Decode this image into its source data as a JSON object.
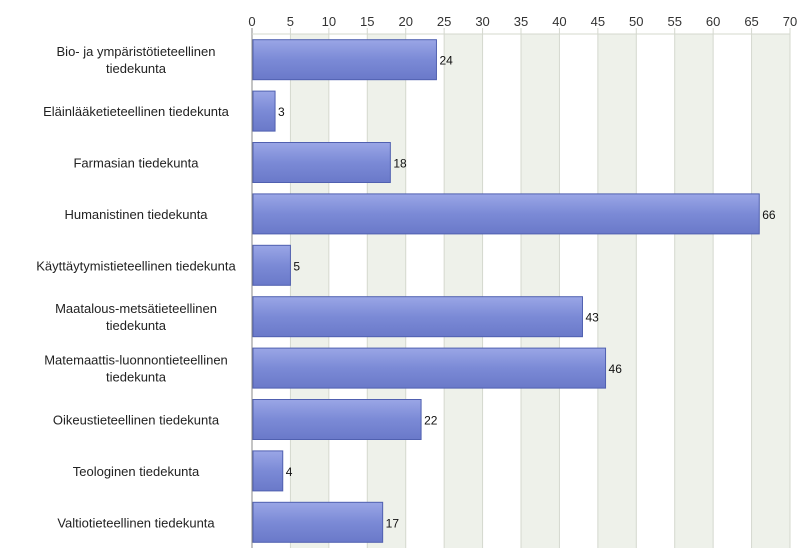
{
  "chart_data": {
    "type": "bar",
    "orientation": "horizontal",
    "categories": [
      [
        "Bio- ja ympäristötieteellinen",
        "tiedekunta"
      ],
      [
        "Eläinlääketieteellinen tiedekunta"
      ],
      [
        "Farmasian tiedekunta"
      ],
      [
        "Humanistinen tiedekunta"
      ],
      [
        "Käyttäytymistieteellinen tiedekunta"
      ],
      [
        "Maatalous-metsätieteellinen",
        "tiedekunta"
      ],
      [
        "Matemaattis-luonnontieteellinen",
        "tiedekunta"
      ],
      [
        "Oikeustieteellinen tiedekunta"
      ],
      [
        "Teologinen tiedekunta"
      ],
      [
        "Valtiotieteellinen tiedekunta"
      ]
    ],
    "values": [
      24,
      3,
      18,
      66,
      5,
      43,
      46,
      22,
      4,
      17
    ],
    "xlim": [
      0,
      70
    ],
    "xticks": [
      0,
      5,
      10,
      15,
      20,
      25,
      30,
      35,
      40,
      45,
      50,
      55,
      60,
      65,
      70
    ],
    "axis_position": "top",
    "grid": true,
    "title": "",
    "xlabel": "",
    "ylabel": "",
    "colors": {
      "bar": "#7b8ad6",
      "bar_edge": "#5060b0",
      "band_light": "#ffffff",
      "band_shade": "#eef1ea",
      "grid": "#d4d8ce",
      "axis": "#888888"
    }
  }
}
